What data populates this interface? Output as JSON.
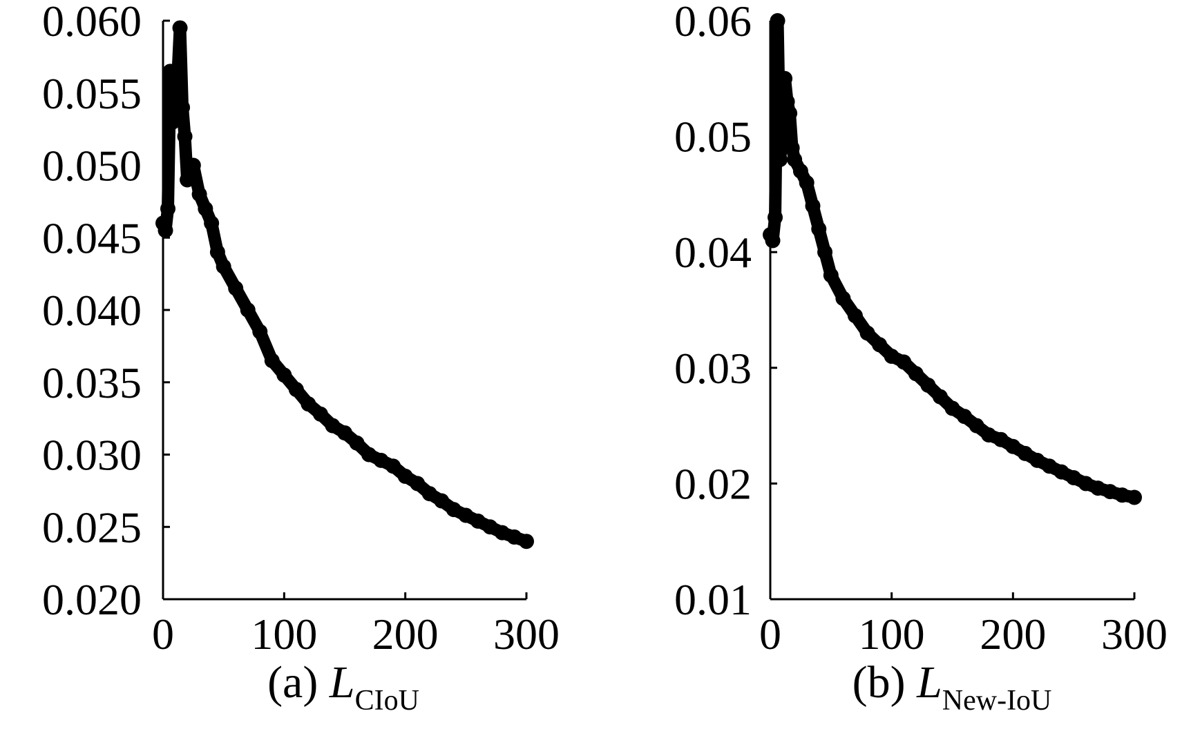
{
  "chart_data": [
    {
      "type": "line",
      "caption": {
        "prefix": "(a) ",
        "symbol": "L",
        "subscript": "CIoU"
      },
      "xlabel": "",
      "ylabel": "",
      "xlim": [
        0,
        300
      ],
      "ylim": [
        0.02,
        0.06
      ],
      "xticks": [
        0,
        100,
        200,
        300
      ],
      "xtick_labels": [
        "0",
        "100",
        "200",
        "300"
      ],
      "yticks": [
        0.02,
        0.025,
        0.03,
        0.035,
        0.04,
        0.045,
        0.05,
        0.055,
        0.06
      ],
      "ytick_labels": [
        "0.020",
        "0.025",
        "0.030",
        "0.035",
        "0.040",
        "0.045",
        "0.050",
        "0.055",
        "0.060"
      ],
      "grid": false,
      "color": "#000000",
      "series": [
        {
          "x": [
            0,
            2,
            4,
            6,
            8,
            10,
            12,
            14,
            16,
            18,
            20,
            25,
            30,
            35,
            40,
            45,
            50,
            60,
            70,
            80,
            90,
            100,
            110,
            120,
            130,
            140,
            150,
            160,
            170,
            180,
            190,
            200,
            210,
            220,
            230,
            240,
            250,
            260,
            270,
            280,
            290,
            300
          ],
          "y": [
            0.046,
            0.0455,
            0.047,
            0.0565,
            0.053,
            0.0548,
            0.056,
            0.0595,
            0.054,
            0.052,
            0.049,
            0.05,
            0.048,
            0.047,
            0.046,
            0.044,
            0.043,
            0.0415,
            0.04,
            0.0385,
            0.0365,
            0.0355,
            0.0345,
            0.0335,
            0.0328,
            0.032,
            0.0315,
            0.0308,
            0.03,
            0.0296,
            0.0292,
            0.0285,
            0.028,
            0.0273,
            0.0268,
            0.0262,
            0.0258,
            0.0254,
            0.025,
            0.0246,
            0.0243,
            0.024
          ]
        }
      ]
    },
    {
      "type": "line",
      "caption": {
        "prefix": "(b) ",
        "symbol": "L",
        "subscript": "New-IoU"
      },
      "xlabel": "",
      "ylabel": "",
      "xlim": [
        0,
        300
      ],
      "ylim": [
        0.01,
        0.06
      ],
      "xticks": [
        0,
        100,
        200,
        300
      ],
      "xtick_labels": [
        "0",
        "100",
        "200",
        "300"
      ],
      "yticks": [
        0.01,
        0.02,
        0.03,
        0.04,
        0.05,
        0.06
      ],
      "ytick_labels": [
        "0.01",
        "0.02",
        "0.03",
        "0.04",
        "0.05",
        "0.06"
      ],
      "grid": false,
      "color": "#000000",
      "series": [
        {
          "x": [
            0,
            2,
            4,
            6,
            8,
            10,
            12,
            14,
            16,
            18,
            20,
            25,
            30,
            35,
            40,
            45,
            50,
            60,
            70,
            80,
            90,
            100,
            110,
            120,
            130,
            140,
            150,
            160,
            170,
            180,
            190,
            200,
            210,
            220,
            230,
            240,
            250,
            260,
            270,
            280,
            290,
            300
          ],
          "y": [
            0.0415,
            0.041,
            0.043,
            0.06,
            0.048,
            0.05,
            0.055,
            0.053,
            0.052,
            0.049,
            0.048,
            0.047,
            0.046,
            0.044,
            0.042,
            0.04,
            0.038,
            0.036,
            0.0345,
            0.033,
            0.032,
            0.031,
            0.0305,
            0.0295,
            0.0285,
            0.0275,
            0.0265,
            0.0258,
            0.025,
            0.0242,
            0.0238,
            0.0232,
            0.0226,
            0.022,
            0.0215,
            0.021,
            0.0205,
            0.02,
            0.0196,
            0.0193,
            0.019,
            0.0188
          ]
        }
      ]
    }
  ]
}
